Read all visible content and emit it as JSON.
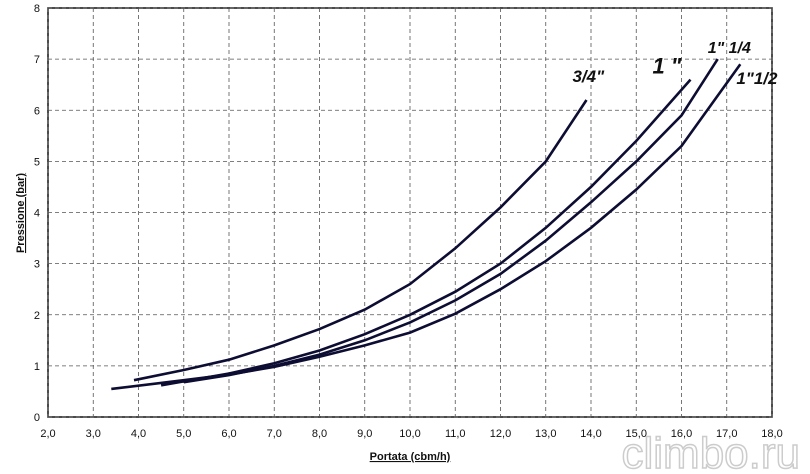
{
  "chart_data": {
    "type": "line",
    "xlabel": "Portata (cbm/h)",
    "ylabel": "Pressione (bar)",
    "watermark": "climbo.ru",
    "xlim": [
      2,
      18
    ],
    "ylim": [
      0,
      8
    ],
    "xticks": [
      {
        "value": 2,
        "label": "2,0"
      },
      {
        "value": 3,
        "label": "3,0"
      },
      {
        "value": 4,
        "label": "4,0"
      },
      {
        "value": 5,
        "label": "5,0"
      },
      {
        "value": 6,
        "label": "6,0"
      },
      {
        "value": 7,
        "label": "7,0"
      },
      {
        "value": 8,
        "label": "8,0"
      },
      {
        "value": 9,
        "label": "9,0"
      },
      {
        "value": 10,
        "label": "10,0"
      },
      {
        "value": 11,
        "label": "11,0"
      },
      {
        "value": 12,
        "label": "12,0"
      },
      {
        "value": 13,
        "label": "13,0"
      },
      {
        "value": 14,
        "label": "14,0"
      },
      {
        "value": 15,
        "label": "15,0"
      },
      {
        "value": 16,
        "label": "16,0"
      },
      {
        "value": 17,
        "label": "17,0"
      },
      {
        "value": 18,
        "label": "18,0"
      }
    ],
    "yticks": [
      0,
      1,
      2,
      3,
      4,
      5,
      6,
      7,
      8
    ],
    "grid": true,
    "series": [
      {
        "name": "3/4\"",
        "color": "#0d0d33",
        "x": [
          3.9,
          5,
          6,
          7,
          8,
          9,
          10,
          11,
          12,
          13,
          13.9
        ],
        "values": [
          0.72,
          0.92,
          1.12,
          1.4,
          1.72,
          2.1,
          2.6,
          3.3,
          4.1,
          5.0,
          6.2
        ]
      },
      {
        "name": "1 \"",
        "color": "#0d0d33",
        "x": [
          4.5,
          6,
          7,
          8,
          9,
          10,
          11,
          12,
          13,
          14,
          15,
          16.2
        ],
        "values": [
          0.62,
          0.85,
          1.05,
          1.3,
          1.62,
          2.0,
          2.45,
          3.0,
          3.7,
          4.5,
          5.4,
          6.6
        ]
      },
      {
        "name": "1\" 1/4",
        "color": "#0d0d33",
        "x": [
          5,
          6,
          7,
          8,
          9,
          10,
          11,
          12,
          13,
          14,
          15,
          16,
          16.8
        ],
        "values": [
          0.68,
          0.82,
          1.0,
          1.22,
          1.5,
          1.85,
          2.28,
          2.8,
          3.45,
          4.2,
          5.0,
          5.9,
          7.0
        ]
      },
      {
        "name": "1\"1/2",
        "color": "#0d0d33",
        "x": [
          3.4,
          5,
          6,
          7,
          8,
          9,
          10,
          11,
          12,
          13,
          14,
          15,
          16,
          17.3
        ],
        "values": [
          0.55,
          0.72,
          0.83,
          0.98,
          1.18,
          1.4,
          1.65,
          2.02,
          2.5,
          3.05,
          3.7,
          4.45,
          5.3,
          6.9
        ]
      }
    ]
  }
}
